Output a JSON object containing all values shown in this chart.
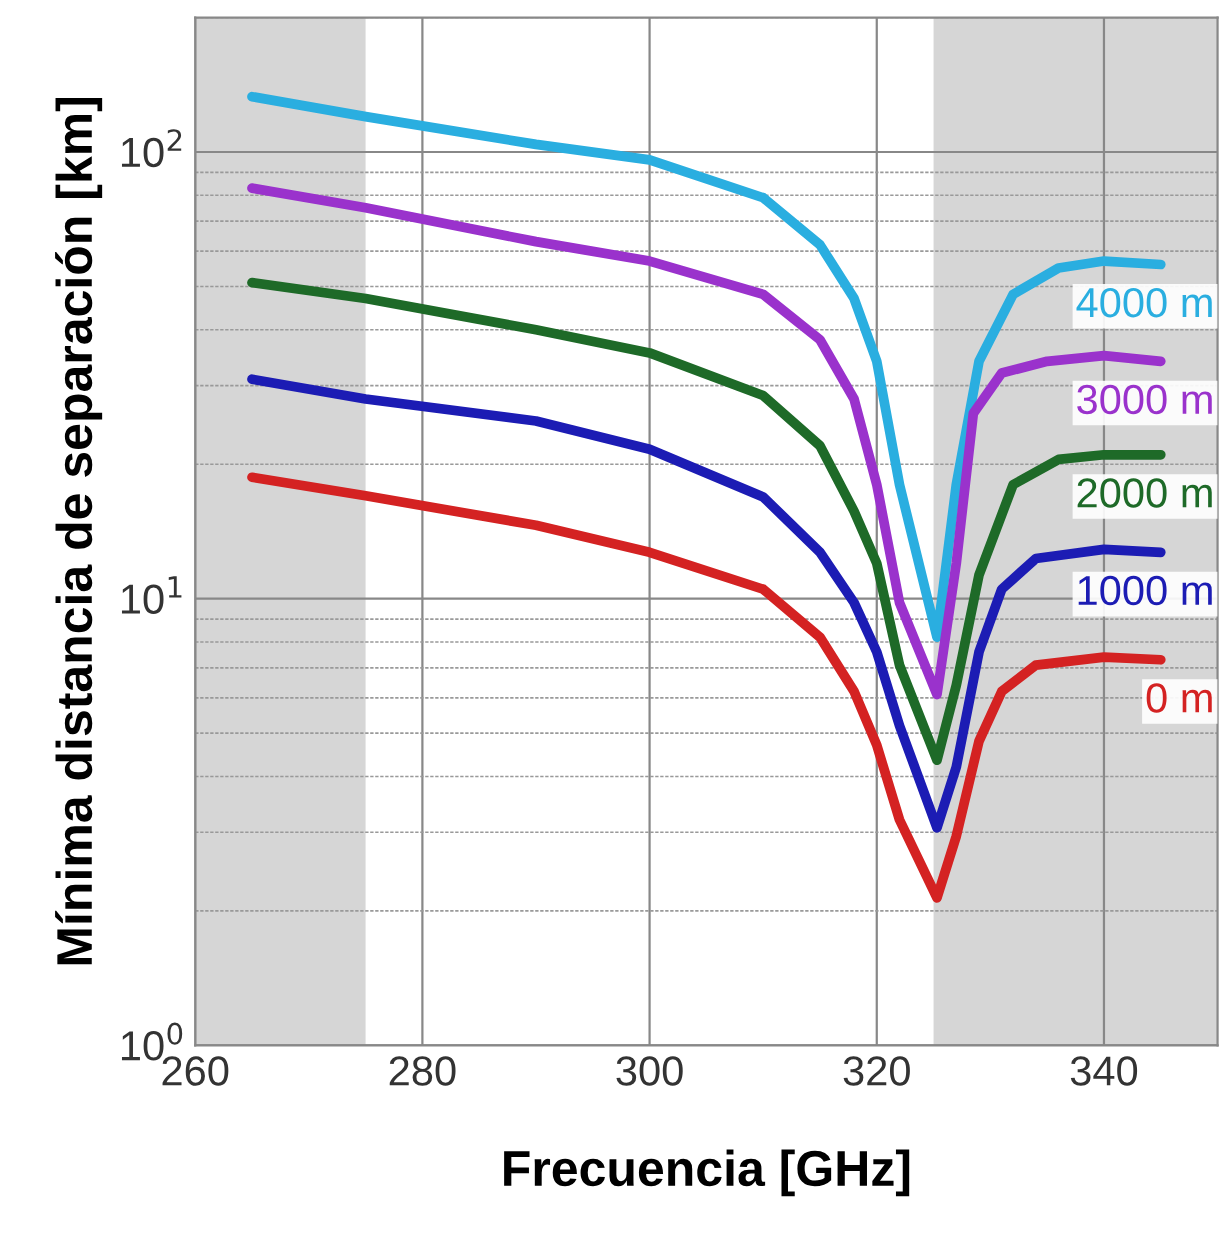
{
  "chart_data": {
    "type": "line",
    "xlabel": "Frecuencia [GHz]",
    "ylabel": "Mínima distancia de separación [km]",
    "log": "y",
    "grid": true,
    "xlim": [
      260,
      350
    ],
    "xticks": [
      260,
      280,
      300,
      320,
      340
    ],
    "ylim": [
      1,
      200
    ],
    "yticks": [
      {
        "value": 1,
        "label": "10$^{0}$"
      },
      {
        "value": 10,
        "label": "10$^{1}$"
      },
      {
        "value": 100,
        "label": "10$^{2}$"
      }
    ],
    "bands": [
      {
        "axis": "x",
        "from": 260,
        "to": 275,
        "color": "#d6d6d6"
      },
      {
        "axis": "x",
        "from": 325,
        "to": 350,
        "color": "#d6d6d6"
      }
    ],
    "x": [
      265,
      275,
      290,
      300,
      310,
      315,
      318,
      320,
      322,
      325.3,
      327,
      329,
      331,
      334,
      340,
      345
    ],
    "series": [
      {
        "name": "4000 m",
        "color": "#2aaee0",
        "x": [
          265,
          275,
          290,
          300,
          310,
          315,
          318,
          320,
          322,
          325.3,
          327,
          329,
          332,
          336,
          340,
          345
        ],
        "values": [
          133,
          120,
          104,
          96,
          79,
          62,
          47,
          34,
          18,
          8.2,
          18,
          34,
          48,
          55,
          57,
          56
        ]
      },
      {
        "name": "3000 m",
        "color": "#9a32cc",
        "x": [
          265,
          275,
          290,
          300,
          310,
          315,
          318,
          320,
          322,
          325.3,
          327,
          328.5,
          331,
          335,
          340,
          345
        ],
        "values": [
          83,
          75,
          63,
          57,
          48,
          38,
          28,
          18,
          9.8,
          6.1,
          12,
          26,
          32,
          34,
          35,
          34
        ]
      },
      {
        "name": "2000 m",
        "color": "#1e6a28",
        "x": [
          265,
          275,
          290,
          300,
          310,
          315,
          318,
          320,
          322,
          325.3,
          327,
          329,
          332,
          336,
          340,
          345
        ],
        "values": [
          51,
          47,
          40,
          35.5,
          28.5,
          22,
          15.7,
          12,
          7.1,
          4.35,
          6.4,
          11.3,
          18,
          20.5,
          21,
          21
        ]
      },
      {
        "name": "1000 m",
        "color": "#1c1cb4",
        "values": [
          31,
          28,
          25,
          21.6,
          16.9,
          12.7,
          9.8,
          7.6,
          5.2,
          3.07,
          4.2,
          7.6,
          10.5,
          12.3,
          12.9,
          12.7
        ]
      },
      {
        "name": "0 m",
        "color": "#d42222",
        "values": [
          18.7,
          17,
          14.6,
          12.7,
          10.5,
          8.2,
          6.2,
          4.7,
          3.2,
          2.14,
          2.94,
          4.8,
          6.2,
          7.1,
          7.4,
          7.3
        ]
      }
    ]
  }
}
